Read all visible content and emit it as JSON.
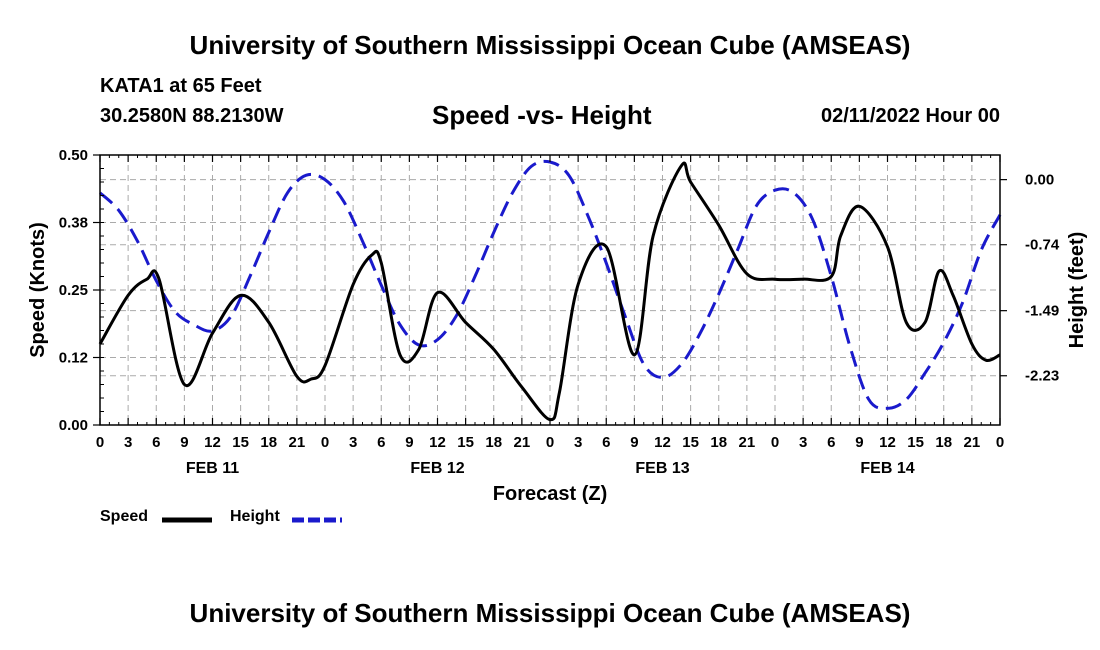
{
  "header": {
    "main_title": "University of Southern Mississippi Ocean Cube (AMSEAS)",
    "station": "KATA1 at 65 Feet",
    "coords": "30.2580N  88.2130W",
    "subtitle": "Speed -vs- Height",
    "datestamp": "02/11/2022 Hour 00"
  },
  "footer": {
    "bottom_title": "University of Southern Mississippi Ocean Cube (AMSEAS)"
  },
  "legend": {
    "speed_label": "Speed",
    "height_label": "Height"
  },
  "colors": {
    "speed": "#000000",
    "height": "#1a1acc",
    "grid": "#aaaaaa"
  },
  "chart_data": {
    "type": "line",
    "title": "Speed -vs- Height",
    "xlabel": "Forecast (Z)",
    "ylabel_left": "Speed (Knots)",
    "ylabel_right": "Height (feet)",
    "xlim": [
      0,
      96
    ],
    "ylim_left": [
      0,
      0.5
    ],
    "ylim_right": [
      -2.79,
      0.28
    ],
    "yticks_left": [
      "0.00",
      "0.12",
      "0.25",
      "0.38",
      "0.50"
    ],
    "yticks_left_values": [
      0,
      0.125,
      0.25,
      0.375,
      0.5
    ],
    "yticks_right": [
      "0.00",
      "-0.74",
      "-1.49",
      "-2.23"
    ],
    "yticks_right_values": [
      0,
      -0.74,
      -1.49,
      -2.23
    ],
    "xtick_labels": [
      "0",
      "3",
      "6",
      "9",
      "12",
      "15",
      "18",
      "21",
      "0",
      "3",
      "6",
      "9",
      "12",
      "15",
      "18",
      "21",
      "0",
      "3",
      "6",
      "9",
      "12",
      "15",
      "18",
      "21",
      "0",
      "3",
      "6",
      "9",
      "12",
      "15",
      "18",
      "21",
      "0"
    ],
    "date_labels": [
      {
        "label": "FEB 11",
        "hour": 12
      },
      {
        "label": "FEB 12",
        "hour": 36
      },
      {
        "label": "FEB 13",
        "hour": 60
      },
      {
        "label": "FEB 14",
        "hour": 84
      }
    ],
    "grid": true,
    "series": [
      {
        "name": "Speed",
        "axis": "left",
        "style": "solid",
        "x": [
          0,
          3,
          5,
          6.3,
          9,
          12,
          15,
          18,
          21,
          22.5,
          24,
          27,
          29,
          30,
          32,
          34,
          36,
          39,
          42,
          45,
          48,
          49,
          51,
          54,
          57,
          59,
          62,
          63,
          66,
          69,
          72,
          75,
          78,
          79,
          81,
          84,
          86,
          88,
          89.5,
          91,
          93,
          94.5,
          96
        ],
        "y": [
          0.15,
          0.24,
          0.27,
          0.27,
          0.075,
          0.17,
          0.24,
          0.19,
          0.09,
          0.085,
          0.11,
          0.26,
          0.315,
          0.3,
          0.13,
          0.14,
          0.245,
          0.19,
          0.14,
          0.07,
          0.01,
          0.06,
          0.26,
          0.33,
          0.13,
          0.35,
          0.48,
          0.45,
          0.37,
          0.28,
          0.27,
          0.27,
          0.275,
          0.35,
          0.405,
          0.33,
          0.19,
          0.19,
          0.285,
          0.24,
          0.15,
          0.12,
          0.13
        ]
      },
      {
        "name": "Height",
        "axis": "right",
        "style": "dashed",
        "x": [
          0,
          2,
          4,
          6,
          8,
          10,
          12,
          14,
          16,
          18,
          20,
          22,
          24,
          26,
          28,
          30,
          32,
          34,
          36,
          38,
          40,
          42,
          44,
          46,
          48,
          50,
          52,
          54,
          56,
          58,
          60,
          62,
          64,
          66,
          68,
          70,
          72,
          74,
          76,
          78,
          80,
          82,
          84,
          86,
          88,
          90,
          92,
          94,
          96
        ],
        "y": [
          -0.15,
          -0.35,
          -0.7,
          -1.15,
          -1.5,
          -1.65,
          -1.72,
          -1.55,
          -1.1,
          -0.6,
          -0.15,
          0.05,
          0.0,
          -0.25,
          -0.7,
          -1.2,
          -1.65,
          -1.88,
          -1.82,
          -1.55,
          -1.1,
          -0.6,
          -0.15,
          0.15,
          0.2,
          0.05,
          -0.4,
          -0.95,
          -1.55,
          -2.1,
          -2.25,
          -2.1,
          -1.75,
          -1.3,
          -0.8,
          -0.3,
          -0.12,
          -0.15,
          -0.45,
          -1.1,
          -1.9,
          -2.5,
          -2.6,
          -2.5,
          -2.2,
          -1.85,
          -1.4,
          -0.8,
          -0.4
        ]
      }
    ]
  }
}
